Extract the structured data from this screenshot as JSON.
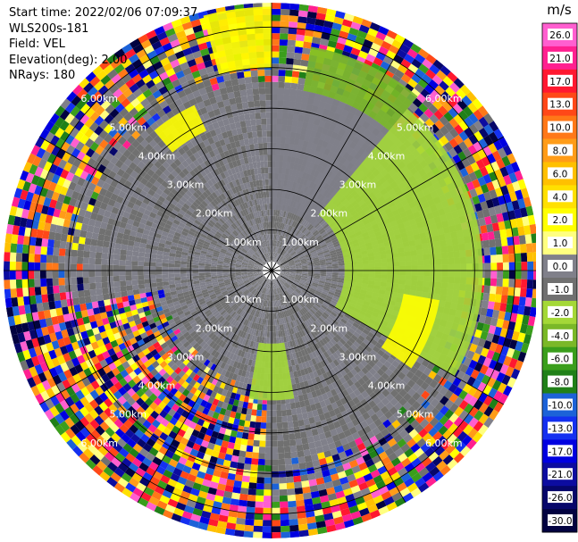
{
  "header": {
    "start_time": "Start time: 2022/02/06 07:09:37",
    "instrument": "WLS200s-181",
    "field": "Field: VEL",
    "elevation": "Elevation(deg): 2.00",
    "nrays": "NRays: 180"
  },
  "chart_data": {
    "type": "ppi-polar",
    "field": "VEL",
    "elevation_deg": 2.0,
    "n_rays": 180,
    "range_km": [
      0,
      6.6
    ],
    "range_rings_km": [
      1,
      2,
      3,
      4,
      5,
      6
    ],
    "ring_labels": [
      "1.00km",
      "2.00km",
      "3.00km",
      "4.00km",
      "5.00km",
      "6.00km"
    ],
    "colorbar": {
      "unit": "m/s",
      "ticks": [
        "26.0",
        "21.0",
        "17.0",
        "13.0",
        "10.0",
        "8.0",
        "6.0",
        "4.0",
        "2.0",
        "1.0",
        "0.0",
        "-1.0",
        "-2.0",
        "-4.0",
        "-6.0",
        "-8.0",
        "-10.0",
        "-13.0",
        "-17.0",
        "-21.0",
        "-26.0",
        "-30.0"
      ],
      "colors": [
        "#ff5fd0",
        "#ff2090",
        "#ff1830",
        "#ff4818",
        "#ff7818",
        "#ff9c18",
        "#ffc000",
        "#ffe000",
        "#ffff00",
        "#ffff80",
        "#80808a",
        "#707070",
        "#a4d838",
        "#7ab828",
        "#3a9e1c",
        "#208018",
        "#1c62d8",
        "#1430f0",
        "#0000e0",
        "#0c0ca0",
        "#06066a",
        "#020240"
      ]
    },
    "sectors": [
      {
        "az_start": 0,
        "az_end": 45,
        "range_start_km": 1.5,
        "range_end_km": 4.5,
        "value": 0.0
      },
      {
        "az_start": 10,
        "az_end": 40,
        "range_start_km": 4.5,
        "range_end_km": 5.6,
        "value": -4.0
      },
      {
        "az_start": 40,
        "az_end": 120,
        "range_start_km": 1.8,
        "range_end_km": 5.2,
        "value": -2.0
      },
      {
        "az_start": 100,
        "az_end": 125,
        "range_start_km": 3.3,
        "range_end_km": 4.2,
        "value": 2.0
      },
      {
        "az_start": 170,
        "az_end": 190,
        "range_start_km": 1.8,
        "range_end_km": 3.2,
        "value": -2.0
      },
      {
        "az_start": 320,
        "az_end": 335,
        "range_start_km": 3.8,
        "range_end_km": 4.5,
        "value": 2.0
      },
      {
        "az_start": 345,
        "az_end": 360,
        "range_start_km": 5.0,
        "range_end_km": 6.5,
        "value": 2.0
      }
    ]
  }
}
